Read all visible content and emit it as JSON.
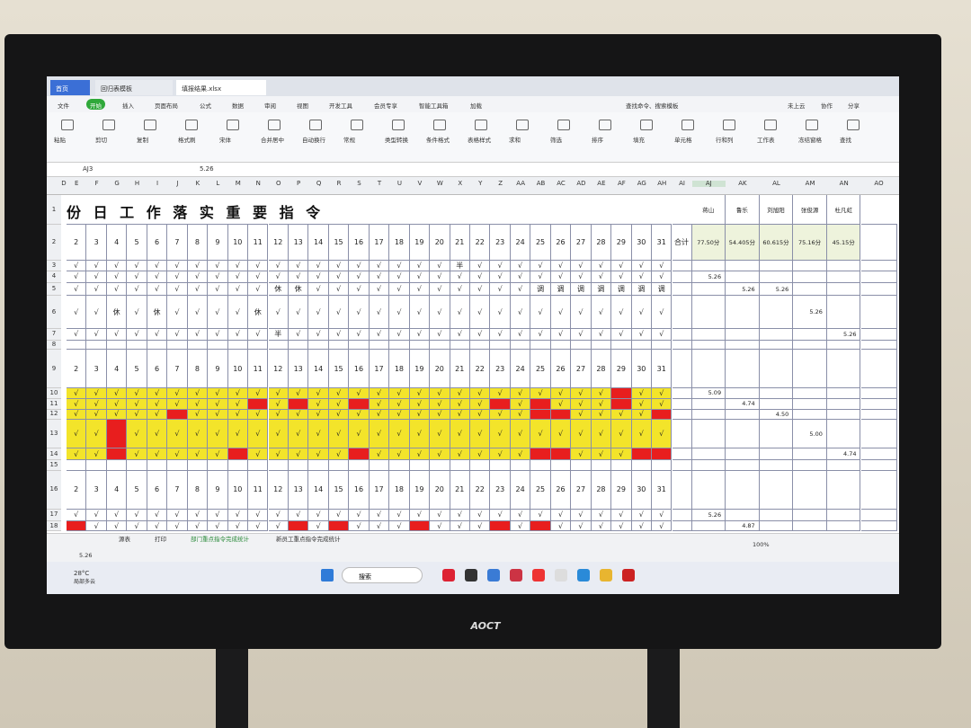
{
  "tabs": [
    "首页",
    "回归表模板",
    "填报结果.xlsx"
  ],
  "menu": [
    "文件",
    "开始",
    "插入",
    "页面布局",
    "公式",
    "数据",
    "审阅",
    "视图",
    "开发工具",
    "会员专享",
    "智能工具箱",
    "加载",
    "查找命令、搜索模板",
    "未上云",
    "协作",
    "分享"
  ],
  "ribbon": [
    "粘贴",
    "剪切",
    "复制",
    "格式刷",
    "宋体",
    "合并居中",
    "自动换行",
    "常规",
    "类型转换",
    "条件格式",
    "表格样式",
    "求和",
    "筛选",
    "排序",
    "填充",
    "单元格",
    "行和列",
    "工作表",
    "冻结窗格",
    "查找"
  ],
  "name_box": "AJ3",
  "formula": "5.26",
  "sheet": {
    "title": "份 日 工 作 落 实 重 要 指 令",
    "columns": [
      "D",
      "E",
      "F",
      "G",
      "H",
      "I",
      "J",
      "K",
      "L",
      "M",
      "N",
      "O",
      "P",
      "Q",
      "R",
      "S",
      "T",
      "U",
      "V",
      "W",
      "X",
      "Y",
      "Z",
      "AA",
      "AB",
      "AC",
      "AD",
      "AE",
      "AF",
      "AG",
      "AH",
      "AI",
      "AJ",
      "AK",
      "AL",
      "AM",
      "AN",
      "AO"
    ],
    "rows": [
      {
        "num": "1",
        "right": [
          "蒋山",
          "鲁乐",
          "刘旭阳",
          "张俊源",
          "杜凡虹"
        ]
      },
      {
        "num": "2",
        "cells": [
          "2",
          "3",
          "4",
          "5",
          "6",
          "7",
          "8",
          "9",
          "10",
          "11",
          "12",
          "13",
          "14",
          "15",
          "16",
          "17",
          "18",
          "19",
          "20",
          "21",
          "22",
          "23",
          "24",
          "25",
          "26",
          "27",
          "28",
          "29",
          "30",
          "31"
        ],
        "total": "合计",
        "right": [
          "77.50分",
          "54.405分",
          "60.615分",
          "75.16分",
          "45.15分"
        ]
      },
      {
        "num": "3",
        "cells": [
          "√",
          "√",
          "√",
          "√",
          "√",
          "√",
          "√",
          "√",
          "√",
          "√",
          "√",
          "√",
          "√",
          "√",
          "√",
          "√",
          "√",
          "√",
          "√",
          "半",
          "√",
          "√",
          "√",
          "√",
          "√",
          "√",
          "√",
          "√",
          "√",
          "√"
        ]
      },
      {
        "num": "4",
        "cells": [
          "√",
          "√",
          "√",
          "√",
          "√",
          "√",
          "√",
          "√",
          "√",
          "√",
          "√",
          "√",
          "√",
          "√",
          "√",
          "√",
          "√",
          "√",
          "√",
          "√",
          "√",
          "√",
          "√",
          "√",
          "√",
          "√",
          "√",
          "√",
          "√",
          "√"
        ],
        "extra": [
          {
            "col": "AJ",
            "text": "5.26"
          }
        ]
      },
      {
        "num": "5",
        "cells": [
          "√",
          "√",
          "√",
          "√",
          "√",
          "√",
          "√",
          "√",
          "√",
          "√",
          "休",
          "休",
          "√",
          "√",
          "√",
          "√",
          "√",
          "√",
          "√",
          "√",
          "√",
          "√",
          "√",
          "调",
          "调",
          "调",
          "调",
          "调",
          "调",
          "调"
        ],
        "extra": [
          {
            "col": "AK",
            "text": "5.26"
          },
          {
            "col": "AL",
            "text": "5.26"
          }
        ]
      },
      {
        "num": "6",
        "cells": [
          "√",
          "√",
          "休",
          "√",
          "休",
          "√",
          "√",
          "√",
          "√",
          "休",
          "√",
          "√",
          "√",
          "√",
          "√",
          "√",
          "√",
          "√",
          "√",
          "√",
          "√",
          "√",
          "√",
          "√",
          "√",
          "√",
          "√",
          "√",
          "√",
          "√"
        ],
        "extra": [
          {
            "col": "AM",
            "text": "5.26"
          }
        ]
      },
      {
        "num": "7",
        "cells": [
          "√",
          "√",
          "√",
          "√",
          "√",
          "√",
          "√",
          "√",
          "√",
          "√",
          "半",
          "√",
          "√",
          "√",
          "√",
          "√",
          "√",
          "√",
          "√",
          "√",
          "√",
          "√",
          "√",
          "√",
          "√",
          "√",
          "√",
          "√",
          "√",
          "√"
        ],
        "extra": [
          {
            "col": "AN",
            "text": "5.26"
          }
        ]
      },
      {
        "num": "8"
      },
      {
        "num": "9",
        "cells": [
          "2",
          "3",
          "4",
          "5",
          "6",
          "7",
          "8",
          "9",
          "10",
          "11",
          "12",
          "13",
          "14",
          "15",
          "16",
          "17",
          "18",
          "19",
          "20",
          "21",
          "22",
          "23",
          "24",
          "25",
          "26",
          "27",
          "28",
          "29",
          "30",
          "31"
        ]
      },
      {
        "num": "10",
        "fill": "#f3e42a",
        "red": [
          27
        ],
        "cells": [
          "√",
          "√",
          "√",
          "√",
          "√",
          "√",
          "√",
          "√",
          "√",
          "√",
          "√",
          "√",
          "√",
          "√",
          "√",
          "√",
          "√",
          "√",
          "√",
          "√",
          "√",
          "√",
          "√",
          "√",
          "√",
          "√",
          "√",
          null,
          "√",
          "√"
        ],
        "extra": [
          {
            "col": "AJ",
            "text": "5.09"
          }
        ]
      },
      {
        "num": "11",
        "fill": "#f3e42a",
        "red": [
          9,
          11,
          14,
          21,
          23,
          27
        ],
        "cells": [
          "√",
          "√",
          "√",
          "√",
          "√",
          "√",
          "√",
          "√",
          "√",
          null,
          "√",
          null,
          "√",
          "√",
          null,
          "√",
          "√",
          "√",
          "√",
          "√",
          "√",
          null,
          "√",
          null,
          "√",
          "√",
          "√",
          null,
          "√",
          "√"
        ],
        "extra": [
          {
            "col": "AK",
            "text": "4.74"
          }
        ]
      },
      {
        "num": "12",
        "fill": "#f3e42a",
        "red": [
          5,
          23,
          24,
          29
        ],
        "cells": [
          "√",
          "√",
          "√",
          "√",
          "√",
          null,
          "√",
          "√",
          "√",
          "√",
          "√",
          "√",
          "√",
          "√",
          "√",
          "√",
          "√",
          "√",
          "√",
          "√",
          "√",
          "√",
          "√",
          null,
          null,
          "√",
          "√",
          "√",
          "√",
          null
        ],
        "extra": [
          {
            "col": "AL",
            "text": "4.50"
          }
        ]
      },
      {
        "num": "13",
        "fill": "#f3e42a",
        "red": [
          2
        ],
        "cells": [
          "√",
          "√",
          null,
          "√",
          "√",
          "√",
          "√",
          "√",
          "√",
          "√",
          "√",
          "√",
          "√",
          "√",
          "√",
          "√",
          "√",
          "√",
          "√",
          "√",
          "√",
          "√",
          "√",
          "√",
          "√",
          "√",
          "√",
          "√",
          "√",
          "√"
        ],
        "extra": [
          {
            "col": "AM",
            "text": "5.00"
          }
        ]
      },
      {
        "num": "14",
        "fill": "#f3e42a",
        "red": [
          2,
          8,
          14,
          23,
          24,
          28,
          29
        ],
        "cells": [
          "√",
          "√",
          null,
          "√",
          "√",
          "√",
          "√",
          "√",
          null,
          "√",
          "√",
          "√",
          "√",
          "√",
          null,
          "√",
          "√",
          "√",
          "√",
          "√",
          "√",
          "√",
          "√",
          null,
          null,
          "√",
          "√",
          "√",
          null,
          null
        ],
        "extra": [
          {
            "col": "AN",
            "text": "4.74"
          }
        ]
      },
      {
        "num": "15"
      },
      {
        "num": "16",
        "cells": [
          "2",
          "3",
          "4",
          "5",
          "6",
          "7",
          "8",
          "9",
          "10",
          "11",
          "12",
          "13",
          "14",
          "15",
          "16",
          "17",
          "18",
          "19",
          "20",
          "21",
          "22",
          "23",
          "24",
          "25",
          "26",
          "27",
          "28",
          "29",
          "30",
          "31"
        ]
      },
      {
        "num": "17",
        "cells": [
          "√",
          "√",
          "√",
          "√",
          "√",
          "√",
          "√",
          "√",
          "√",
          "√",
          "√",
          "√",
          "√",
          "√",
          "√",
          "√",
          "√",
          "√",
          "√",
          "√",
          "√",
          "√",
          "√",
          "√",
          "√",
          "√",
          "√",
          "√",
          "√",
          "√"
        ],
        "extra": [
          {
            "col": "AJ",
            "text": "5.26"
          }
        ]
      },
      {
        "num": "18",
        "red": [
          0,
          11,
          13,
          17,
          21,
          23
        ],
        "cells": [
          null,
          "√",
          "√",
          "√",
          "√",
          "√",
          "√",
          "√",
          "√",
          "√",
          "√",
          null,
          "√",
          null,
          "√",
          "√",
          "√",
          null,
          "√",
          "√",
          "√",
          null,
          "√",
          null,
          "√",
          "√",
          "√",
          "√",
          "√",
          "√"
        ],
        "extra": [
          {
            "col": "AK",
            "text": "4.87"
          }
        ]
      }
    ]
  },
  "sheet_tabs": [
    "源表",
    "打印",
    "部门重点指令完成统计",
    "新员工重点指令完成统计"
  ],
  "status": "5.26",
  "zoom": "100%",
  "weather": "28°C",
  "weather_desc": "局部多云",
  "search": "搜索",
  "brand": "AOCT"
}
